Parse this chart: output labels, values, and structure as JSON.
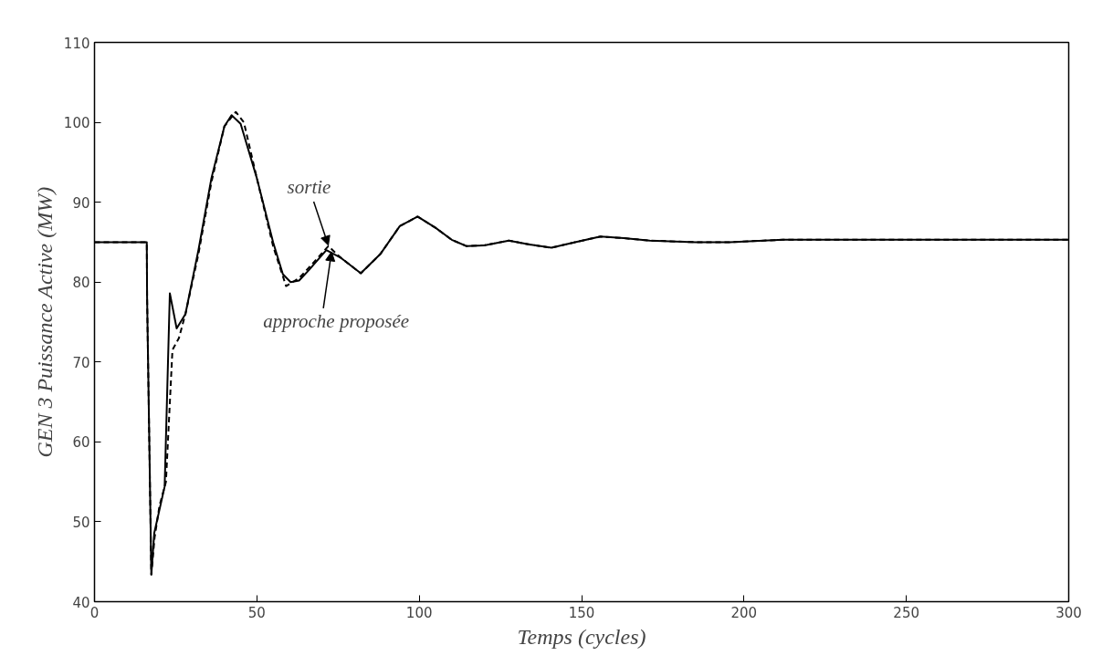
{
  "chart_data": {
    "type": "line",
    "xlabel": "Temps (cycles)",
    "ylabel": "GEN 3 Puissance Active (MW)",
    "xlim": [
      0,
      300
    ],
    "ylim": [
      40,
      110
    ],
    "xticks": [
      0,
      50,
      100,
      150,
      200,
      250,
      300
    ],
    "yticks": [
      40,
      50,
      60,
      70,
      80,
      90,
      100,
      110
    ],
    "series": [
      {
        "color": "#000000",
        "line_style": "solid",
        "x": [
          0,
          16.1,
          16.2,
          17.5,
          18.4,
          21.6,
          23.2,
          25.3,
          28,
          32,
          36,
          40,
          42.2,
          45,
          50,
          55,
          58,
          60.4,
          63,
          66,
          71.4,
          76,
          82,
          88,
          94,
          99.5,
          105,
          110,
          114.6,
          120,
          127.6,
          134,
          140.7,
          148,
          155.8,
          163,
          171,
          185,
          195.6,
          212,
          250,
          300
        ],
        "values": [
          85,
          85,
          78,
          43.4,
          48.6,
          54.4,
          78.6,
          74.2,
          76,
          84,
          93,
          99.5,
          100.9,
          99.8,
          93,
          85,
          81,
          80,
          80.2,
          81.5,
          84,
          83,
          81.1,
          83.5,
          87,
          88.2,
          86.8,
          85.3,
          84.5,
          84.6,
          85.2,
          84.7,
          84.3,
          85,
          85.7,
          85.5,
          85.2,
          85,
          85,
          85.3,
          85.3,
          85.3
        ]
      },
      {
        "color": "#000000",
        "line_style": "dashed",
        "x": [
          0,
          16.1,
          16.2,
          17.5,
          18.5,
          20,
          22,
          24,
          26,
          28,
          32,
          36,
          40,
          43.5,
          46,
          50,
          55,
          59,
          63,
          66,
          72,
          76,
          82,
          88,
          94,
          99.5,
          105,
          110,
          114.6,
          120,
          127.6,
          134,
          140.7,
          148,
          155.8,
          163,
          171,
          185,
          195.6,
          212,
          250,
          300
        ],
        "values": [
          85,
          85,
          78,
          43.4,
          48,
          52,
          55,
          71.5,
          73,
          76,
          83.5,
          92.5,
          99.5,
          101.3,
          100,
          93,
          84.5,
          79.5,
          80.5,
          81.8,
          84.5,
          83,
          81.1,
          83.5,
          87,
          88.2,
          86.8,
          85.3,
          84.5,
          84.6,
          85.2,
          84.7,
          84.3,
          85,
          85.7,
          85.5,
          85.2,
          85,
          85,
          85.3,
          85.3,
          85.3
        ]
      }
    ],
    "annotations": [
      {
        "text": "sortie",
        "x": 72,
        "y": 84.6
      },
      {
        "text": "approche proposée",
        "x": 73,
        "y": 83.8
      }
    ]
  }
}
